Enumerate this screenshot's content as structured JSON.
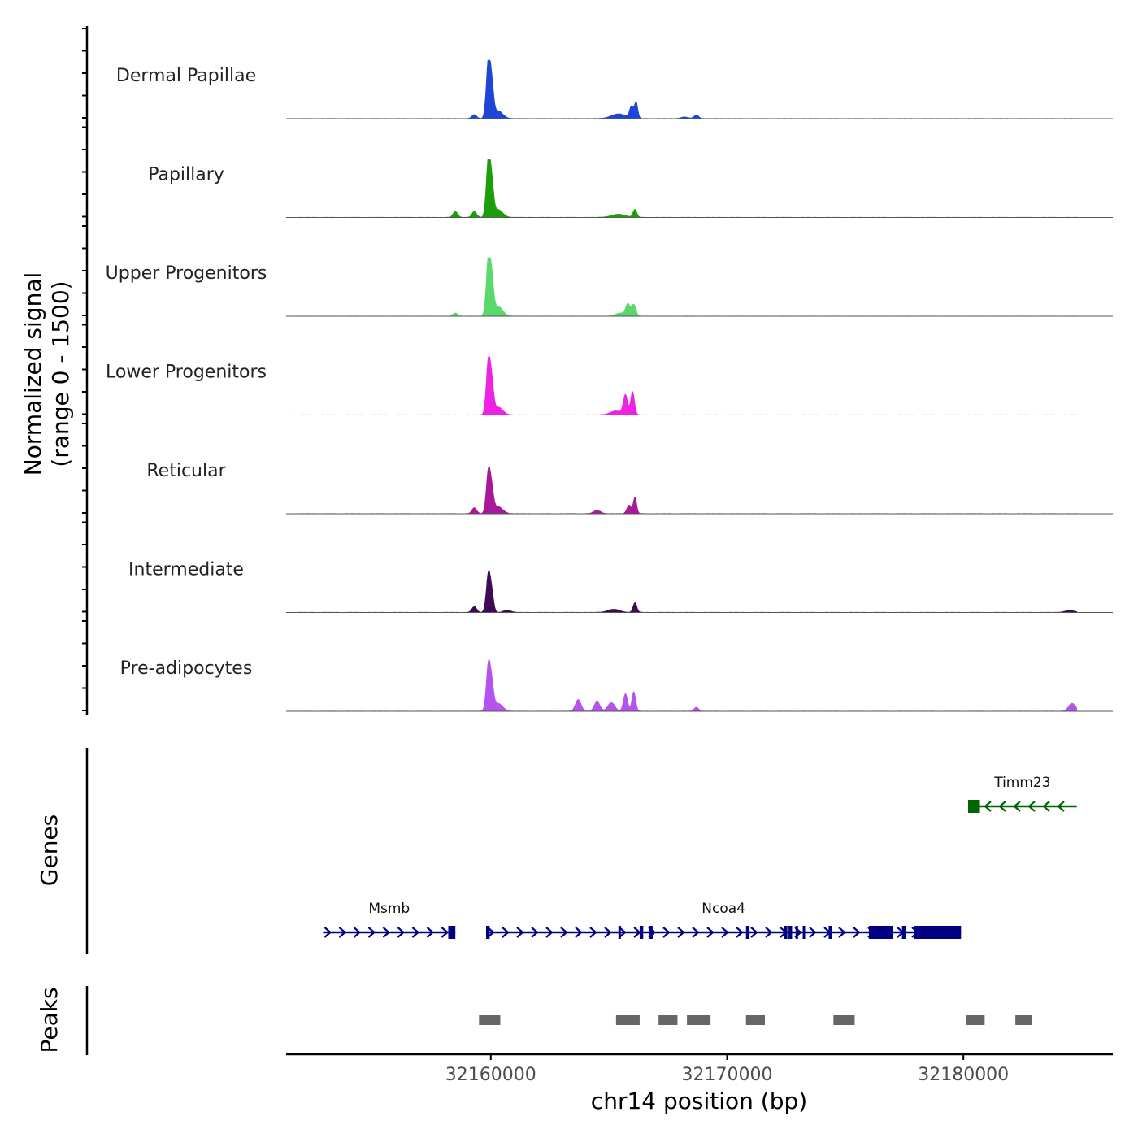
{
  "chart_data": {
    "type": "area",
    "ylabel_line1": "Normalized signal",
    "ylabel_line2": "(range 0 - 1500)",
    "y_range": [
      0,
      1500
    ],
    "xlabel": "chr14 position (bp)",
    "xlim": [
      32151500,
      32186500
    ],
    "x_ticks": [
      32160000,
      32170000,
      32180000
    ],
    "x_tick_labels": [
      "32160000",
      "32170000",
      "32180000"
    ],
    "series": [
      {
        "name": "Dermal Papillae",
        "color": "#1f45d6",
        "peaks": [
          [
            32159900,
            1500,
            90
          ],
          [
            32160050,
            650,
            80
          ],
          [
            32160300,
            200,
            200
          ],
          [
            32159300,
            100,
            100
          ],
          [
            32165400,
            120,
            300
          ],
          [
            32165950,
            300,
            80
          ],
          [
            32166150,
            420,
            70
          ],
          [
            32168700,
            90,
            100
          ],
          [
            32168200,
            40,
            150
          ]
        ]
      },
      {
        "name": "Papillary",
        "color": "#1c9e0c",
        "peaks": [
          [
            32159900,
            1500,
            90
          ],
          [
            32160050,
            650,
            80
          ],
          [
            32160300,
            200,
            200
          ],
          [
            32158500,
            150,
            100
          ],
          [
            32159300,
            150,
            100
          ],
          [
            32165400,
            80,
            300
          ],
          [
            32166100,
            200,
            80
          ]
        ]
      },
      {
        "name": "Upper Progenitors",
        "color": "#5ad96a",
        "peaks": [
          [
            32159900,
            1500,
            90
          ],
          [
            32160050,
            700,
            80
          ],
          [
            32160300,
            250,
            200
          ],
          [
            32158500,
            80,
            100
          ],
          [
            32165800,
            300,
            90
          ],
          [
            32166050,
            300,
            90
          ],
          [
            32165500,
            80,
            200
          ]
        ]
      },
      {
        "name": "Lower Progenitors",
        "color": "#ee22e4",
        "peaks": [
          [
            32159900,
            1400,
            90
          ],
          [
            32160050,
            600,
            80
          ],
          [
            32160300,
            200,
            200
          ],
          [
            32165700,
            500,
            90
          ],
          [
            32166000,
            600,
            80
          ],
          [
            32165300,
            100,
            250
          ]
        ]
      },
      {
        "name": "Reticular",
        "color": "#a8189a",
        "peaks": [
          [
            32159900,
            1100,
            90
          ],
          [
            32160050,
            450,
            80
          ],
          [
            32160300,
            180,
            200
          ],
          [
            32159300,
            150,
            100
          ],
          [
            32165850,
            220,
            90
          ],
          [
            32166100,
            420,
            70
          ],
          [
            32164500,
            80,
            150
          ]
        ]
      },
      {
        "name": "Intermediate",
        "color": "#3e0a55",
        "peaks": [
          [
            32159900,
            1000,
            90
          ],
          [
            32160050,
            400,
            80
          ],
          [
            32159300,
            150,
            100
          ],
          [
            32160700,
            60,
            150
          ],
          [
            32166100,
            250,
            80
          ],
          [
            32165200,
            80,
            250
          ],
          [
            32184500,
            50,
            200
          ]
        ]
      },
      {
        "name": "Pre-adipocytes",
        "color": "#b553ee",
        "peaks": [
          [
            32159900,
            1200,
            90
          ],
          [
            32160050,
            500,
            80
          ],
          [
            32160300,
            200,
            200
          ],
          [
            32163700,
            300,
            120
          ],
          [
            32164500,
            250,
            120
          ],
          [
            32165100,
            220,
            150
          ],
          [
            32165700,
            450,
            90
          ],
          [
            32166050,
            500,
            80
          ],
          [
            32168700,
            100,
            100
          ],
          [
            32184600,
            200,
            150
          ]
        ]
      }
    ],
    "genes": [
      {
        "name": "Msmb",
        "strand": "+",
        "color": "#000080",
        "start": 32152900,
        "end": 32158500,
        "row": 2,
        "exons": [
          [
            32158200,
            32158500
          ]
        ]
      },
      {
        "name": "Ncoa4",
        "strand": "+",
        "color": "#000080",
        "start": 32159800,
        "end": 32179900,
        "row": 2,
        "exons": [
          [
            32159800,
            32159950
          ],
          [
            32165400,
            32165500
          ],
          [
            32166300,
            32166450
          ],
          [
            32166700,
            32166850
          ],
          [
            32170800,
            32170950
          ],
          [
            32172400,
            32172550
          ],
          [
            32172600,
            32172750
          ],
          [
            32172900,
            32173000
          ],
          [
            32173200,
            32173300
          ],
          [
            32174300,
            32174450
          ],
          [
            32176000,
            32177000
          ],
          [
            32177400,
            32177550
          ],
          [
            32177900,
            32179900
          ]
        ]
      },
      {
        "name": "Timm23",
        "strand": "-",
        "color": "#006400",
        "start": 32180200,
        "end": 32184800,
        "row": 1,
        "exons": [
          [
            32180200,
            32180700
          ]
        ]
      }
    ],
    "peaks_track": [
      [
        32159500,
        32160400
      ],
      [
        32165300,
        32166300
      ],
      [
        32167100,
        32167900
      ],
      [
        32168300,
        32169300
      ],
      [
        32170800,
        32171600
      ],
      [
        32174500,
        32175400
      ],
      [
        32180100,
        32180900
      ],
      [
        32182200,
        32182900
      ]
    ],
    "peak_color": "#666666"
  },
  "labels": {
    "genes_title": "Genes",
    "peaks_title": "Peaks"
  }
}
